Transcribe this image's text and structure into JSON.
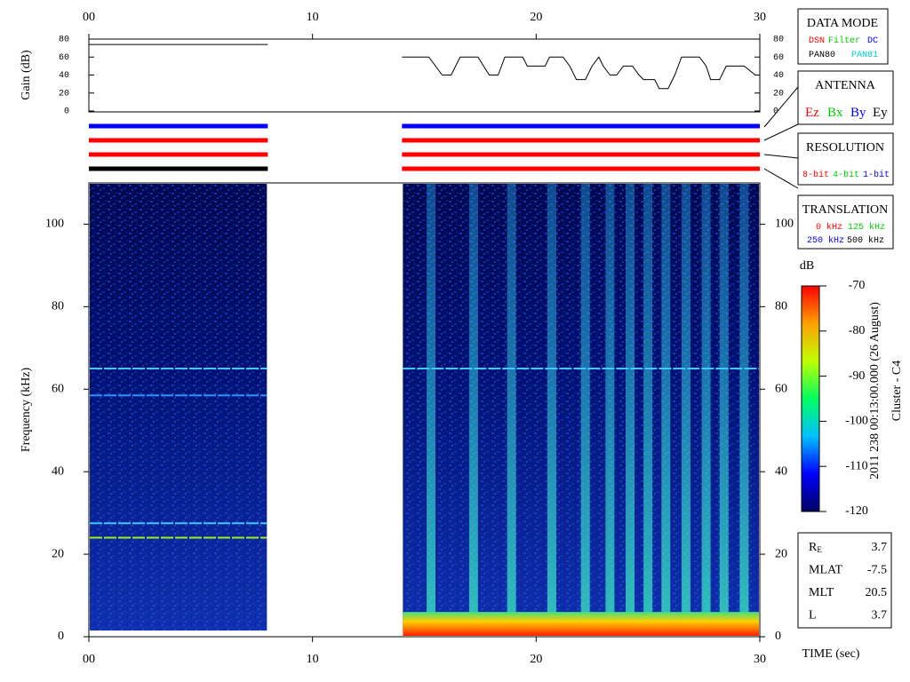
{
  "chart_data": [
    {
      "type": "line",
      "ylabel": "Gain (dB)",
      "xlim": [
        0,
        30
      ],
      "xticks": [
        {
          "value": 0,
          "label": "00"
        },
        10,
        20,
        30
      ],
      "ylim": [
        0,
        80
      ],
      "yticks": [
        0,
        20,
        40,
        60,
        80
      ],
      "series": [
        {
          "color": "#000000",
          "x": [
            0,
            8,
            11,
            14,
            15.2,
            15.8,
            16.2,
            16.6,
            17.4,
            17.9,
            18.3,
            18.6,
            19.4,
            19.6,
            20.4,
            20.6,
            21.2,
            21.5,
            21.8,
            22.2,
            22.5,
            22.8,
            23.0,
            23.3,
            23.6,
            23.9,
            24.3,
            24.6,
            24.8,
            25.3,
            25.5,
            25.9,
            26.2,
            26.5,
            27.3,
            27.6,
            27.8,
            28.2,
            28.5,
            29.3,
            29.8,
            30
          ],
          "values": [
            74,
            74,
            null,
            60,
            60,
            40,
            40,
            60,
            60,
            40,
            40,
            60,
            60,
            50,
            50,
            60,
            60,
            50,
            35,
            35,
            50,
            60,
            50,
            40,
            40,
            50,
            50,
            40,
            35,
            35,
            25,
            25,
            40,
            60,
            60,
            50,
            35,
            35,
            50,
            50,
            40,
            40
          ]
        }
      ],
      "status": [
        {
          "x": [
            0,
            8
          ],
          "colors": [
            "#0000ff",
            "#ff0000",
            "#ff0000",
            "#000000"
          ]
        },
        {
          "x": [
            14,
            30
          ],
          "colors": [
            "#0000ff",
            "#ff0000",
            "#ff0000",
            "#ff0000"
          ]
        }
      ]
    },
    {
      "type": "spectrogram",
      "ylabel": "Frequency (kHz)",
      "xlabel": "TIME (sec)",
      "xlim": [
        0,
        30
      ],
      "xticks": [
        {
          "value": 0,
          "label": "00"
        },
        10,
        20,
        30
      ],
      "ylim": [
        0,
        110
      ],
      "yticks": [
        0,
        20,
        40,
        60,
        80,
        100
      ],
      "segments": [
        [
          0,
          8
        ],
        [
          14,
          30
        ]
      ],
      "tones": [
        {
          "y": 65,
          "x": [
            0,
            30
          ],
          "color": "#40c8ff"
        },
        {
          "y": 58.5,
          "x": [
            0,
            8
          ],
          "color": "#3090ff"
        },
        {
          "y": 27.5,
          "x": [
            0,
            8
          ],
          "color": "#40c8ff"
        },
        {
          "y": 24,
          "x": [
            0,
            8
          ],
          "color": "#a0f020"
        }
      ],
      "bursts": [
        15.3,
        17.2,
        18.9,
        20.7,
        22.2,
        23.3,
        24.2,
        25.0,
        25.8,
        26.7,
        27.6,
        28.4,
        29.3
      ],
      "noise_band": {
        "x": [
          14,
          30
        ],
        "ylim": [
          0,
          6
        ]
      },
      "colorbar": {
        "label": "dB",
        "lim": [
          -120,
          -70
        ],
        "ticks": [
          -120,
          -110,
          -100,
          -90,
          -80,
          -70
        ],
        "colors": [
          "#000060",
          "#0000ff",
          "#00c0ff",
          "#00ff60",
          "#c0ff00",
          "#ffa000",
          "#ff0000"
        ]
      }
    }
  ],
  "annotation": [
    "2011 238 00:13:00.000 (26 August)",
    "Cluster - C4"
  ],
  "boxes": {
    "data_mode": {
      "title": "DATA MODE",
      "rows": [
        [
          {
            "text": "DSN",
            "color": "#ff0000"
          },
          {
            "text": "Filter",
            "color": "#00cc00"
          },
          {
            "text": "DC",
            "color": "#0000ff"
          }
        ],
        [
          {
            "text": "PAN80",
            "color": "#000000"
          },
          {
            "text": "PAN81",
            "color": "#00cccc"
          }
        ]
      ]
    },
    "antenna": {
      "title": "ANTENNA",
      "rows": [
        [
          {
            "text": "Ez",
            "color": "#ff0000"
          },
          {
            "text": "Bx",
            "color": "#00cc00"
          },
          {
            "text": "By",
            "color": "#0000ff"
          },
          {
            "text": "Ey",
            "color": "#000000"
          }
        ]
      ]
    },
    "resolution": {
      "title": "RESOLUTION",
      "rows": [
        [
          {
            "text": "8-bit",
            "color": "#ff0000"
          },
          {
            "text": "4-bit",
            "color": "#00cc00"
          },
          {
            "text": "1-bit",
            "color": "#0000ff"
          }
        ]
      ]
    },
    "translation": {
      "title": "TRANSLATION",
      "rows": [
        [
          {
            "text": "0 kHz",
            "color": "#ff0000"
          },
          {
            "text": "125 kHz",
            "color": "#00cc00"
          }
        ],
        [
          {
            "text": "250 kHz",
            "color": "#0000ff"
          },
          {
            "text": "500 kHz",
            "color": "#000000"
          }
        ]
      ]
    }
  },
  "info": [
    {
      "label": "R",
      "sub": "E",
      "value": 3.7
    },
    {
      "label": "MLAT",
      "value": -7.5
    },
    {
      "label": "MLT",
      "value": 20.5
    },
    {
      "label": "L",
      "value": 3.7
    }
  ]
}
